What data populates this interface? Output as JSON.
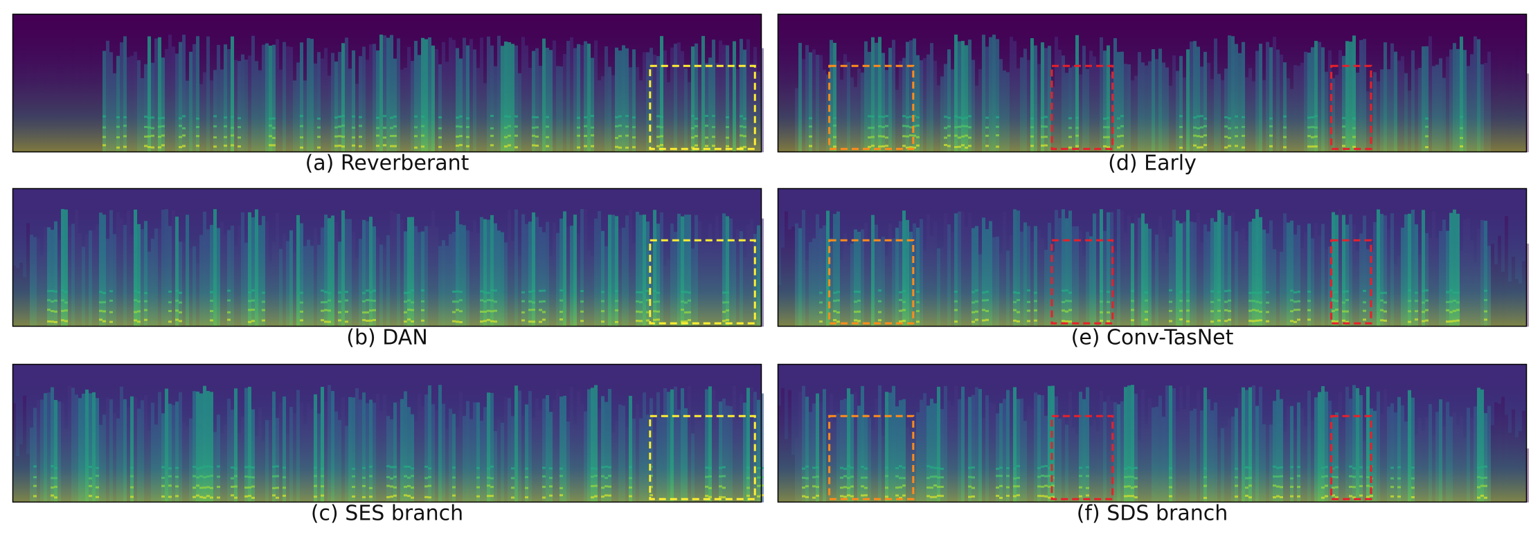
{
  "panels": [
    {
      "caption": "(a) Reverberant"
    },
    {
      "caption": "(b) DAN"
    },
    {
      "caption": "(c) SES branch"
    },
    {
      "caption": "(d) Early"
    },
    {
      "caption": "(e) Conv-TasNet"
    },
    {
      "caption": "(f) SDS branch"
    }
  ]
}
